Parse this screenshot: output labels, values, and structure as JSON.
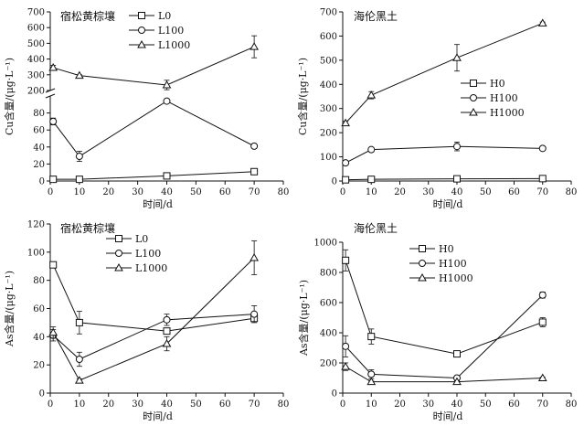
{
  "chart_data": [
    {
      "type": "line",
      "title": "宿松黄棕壤",
      "xlabel": "时间/d",
      "ylabel": "Cu含量/(μg·L⁻¹)",
      "xlim": [
        0,
        80
      ],
      "xticks": [
        0,
        10,
        20,
        30,
        40,
        50,
        60,
        70,
        80
      ],
      "broken_axis": true,
      "ylim_lower": [
        0,
        100
      ],
      "yticks_lower": [
        0,
        20,
        40,
        60,
        80
      ],
      "ylim_upper": [
        200,
        700
      ],
      "yticks_upper": [
        200,
        300,
        400,
        500,
        600,
        700
      ],
      "legend_position": "top-center",
      "series": [
        {
          "name": "L0",
          "marker": "square",
          "x": [
            1,
            10,
            40,
            70
          ],
          "values": [
            2,
            2,
            6,
            11
          ],
          "err": [
            0,
            0,
            1,
            1
          ]
        },
        {
          "name": "L100",
          "marker": "circle",
          "x": [
            1,
            10,
            40,
            70
          ],
          "values": [
            70,
            29,
            94,
            41
          ],
          "err": [
            4,
            6,
            1,
            1
          ]
        },
        {
          "name": "L1000",
          "marker": "triangle",
          "x": [
            1,
            10,
            40,
            70
          ],
          "values": [
            345,
            295,
            235,
            478
          ],
          "err": [
            15,
            5,
            30,
            70
          ]
        }
      ]
    },
    {
      "type": "line",
      "title": "海伦黑土",
      "xlabel": "时间/d",
      "ylabel": "Cu含量/(μg·L⁻¹)",
      "xlim": [
        0,
        80
      ],
      "xticks": [
        0,
        10,
        20,
        30,
        40,
        50,
        60,
        70,
        80
      ],
      "ylim": [
        0,
        700
      ],
      "yticks": [
        0,
        100,
        200,
        300,
        400,
        500,
        600,
        700
      ],
      "legend_position": "middle-right",
      "series": [
        {
          "name": "H0",
          "marker": "square",
          "x": [
            1,
            10,
            40,
            70
          ],
          "values": [
            5,
            7,
            9,
            10
          ],
          "err": [
            0,
            0,
            0,
            0
          ]
        },
        {
          "name": "H100",
          "marker": "circle",
          "x": [
            1,
            10,
            40,
            70
          ],
          "values": [
            75,
            130,
            143,
            135
          ],
          "err": [
            5,
            8,
            18,
            5
          ]
        },
        {
          "name": "H1000",
          "marker": "triangle",
          "x": [
            1,
            10,
            40,
            70
          ],
          "values": [
            240,
            355,
            510,
            653
          ],
          "err": [
            8,
            15,
            55,
            5
          ]
        }
      ]
    },
    {
      "type": "line",
      "title": "宿松黄棕壤",
      "xlabel": "时间/d",
      "ylabel": "As含量/(μg·L⁻¹)",
      "xlim": [
        0,
        80
      ],
      "xticks": [
        0,
        10,
        20,
        30,
        40,
        50,
        60,
        70,
        80
      ],
      "ylim": [
        0,
        120
      ],
      "yticks": [
        0,
        20,
        40,
        60,
        80,
        100,
        120
      ],
      "legend_position": "top-center",
      "series": [
        {
          "name": "L0",
          "marker": "square",
          "x": [
            1,
            10,
            40,
            70
          ],
          "values": [
            91,
            50,
            44,
            53
          ],
          "err": [
            1,
            8,
            2,
            1
          ]
        },
        {
          "name": "L100",
          "marker": "circle",
          "x": [
            1,
            10,
            40,
            70
          ],
          "values": [
            41,
            24,
            52,
            56
          ],
          "err": [
            4,
            5,
            4,
            6
          ]
        },
        {
          "name": "L1000",
          "marker": "triangle",
          "x": [
            1,
            10,
            40,
            70
          ],
          "values": [
            43,
            9,
            35,
            96
          ],
          "err": [
            4,
            1,
            5,
            12
          ]
        }
      ]
    },
    {
      "type": "line",
      "title": "海伦黑土",
      "xlabel": "时间/d",
      "ylabel": "As含量/(μg·L⁻¹)",
      "xlim": [
        0,
        80
      ],
      "xticks": [
        0,
        10,
        20,
        30,
        40,
        50,
        60,
        70,
        80
      ],
      "ylim": [
        0,
        1000
      ],
      "yticks": [
        0,
        200,
        400,
        600,
        800,
        1000
      ],
      "legend_position": "top-center",
      "series": [
        {
          "name": "H0",
          "marker": "square",
          "x": [
            1,
            10,
            40,
            70
          ],
          "values": [
            880,
            375,
            260,
            470
          ],
          "err": [
            70,
            50,
            5,
            30
          ]
        },
        {
          "name": "H100",
          "marker": "circle",
          "x": [
            1,
            10,
            40,
            70
          ],
          "values": [
            310,
            125,
            100,
            650
          ],
          "err": [
            70,
            30,
            10,
            20
          ]
        },
        {
          "name": "H1000",
          "marker": "triangle",
          "x": [
            1,
            10,
            40,
            70
          ],
          "values": [
            175,
            75,
            75,
            100
          ],
          "err": [
            25,
            5,
            5,
            5
          ]
        }
      ]
    }
  ]
}
